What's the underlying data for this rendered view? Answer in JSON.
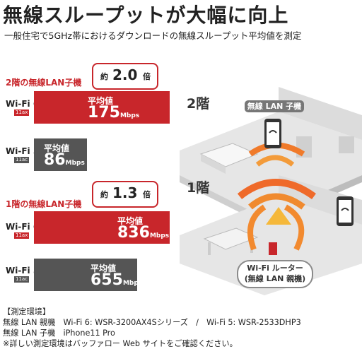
{
  "title": "無線スループットが大幅に向上",
  "subtitle": "一般住宅で5GHz帯におけるダウンロードの無線スループット平均値を測定",
  "comparisons": [
    {
      "section_label": "2階の無線LAN子機",
      "ratio_prefix": "約",
      "ratio": "2.0",
      "ratio_suffix": "倍",
      "rows": [
        {
          "name": "Wi-Fi 6",
          "tag": "11ax",
          "label": "平均値",
          "value": "175",
          "unit": "Mbps",
          "color": "#c8262b"
        },
        {
          "name": "Wi-Fi 5",
          "tag": "11ac",
          "label": "平均値",
          "value": "86",
          "unit": "Mbps",
          "color": "#555555"
        }
      ]
    },
    {
      "section_label": "1階の無線LAN子機",
      "ratio_prefix": "約",
      "ratio": "1.3",
      "ratio_suffix": "倍",
      "rows": [
        {
          "name": "Wi-Fi 6",
          "tag": "11ax",
          "label": "平均値",
          "value": "836",
          "unit": "Mbps",
          "color": "#c8262b"
        },
        {
          "name": "Wi-Fi 5",
          "tag": "11ac",
          "label": "平均値",
          "value": "655",
          "unit": "Mbps",
          "color": "#555555"
        }
      ]
    }
  ],
  "illustration": {
    "floor2": "2階",
    "floor1": "1階",
    "client_label": "無線 LAN 子機",
    "router_label_line1": "Wi-Fi ルーター",
    "router_label_line2": "(無線 LAN 親機)"
  },
  "footer": {
    "line1": "【測定環境】",
    "line2": "無線 LAN 親機　Wi-Fi 6: WSR-3200AX4Sシリーズ　/　Wi-Fi 5: WSR-2533DHP3",
    "line3": "無線 LAN 子機　iPhone11 Pro",
    "line4": "※詳しい測定環境はバッファロー Web サイトをご確認ください。"
  }
}
